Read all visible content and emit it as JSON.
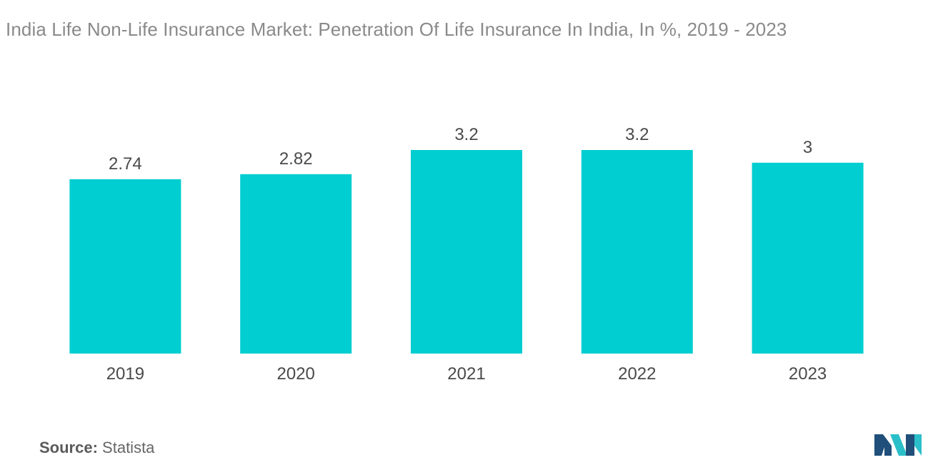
{
  "title": "India Life  Non-Life Insurance Market: Penetration Of Life Insurance In India, In %, 2019 - 2023",
  "source": {
    "label": "Source:",
    "value": "Statista"
  },
  "colors": {
    "bar": "#00CED1",
    "text": "#4a4a4a",
    "title": "#8a8a8a",
    "logo_dark": "#1f4f7a",
    "logo_light": "#2bbfc9"
  },
  "logo": {
    "icon": "mordor-intelligence-logo-icon"
  },
  "chart_data": {
    "type": "bar",
    "title": "India Life  Non-Life Insurance Market: Penetration Of Life Insurance In India, In %, 2019 - 2023",
    "categories": [
      "2019",
      "2020",
      "2021",
      "2022",
      "2023"
    ],
    "values": [
      2.74,
      2.82,
      3.2,
      3.2,
      3
    ],
    "value_labels": [
      "2.74",
      "2.82",
      "3.2",
      "3.2",
      "3"
    ],
    "xlabel": "",
    "ylabel": "",
    "ylim": [
      0,
      3.2
    ],
    "grid": false,
    "legend": "none"
  }
}
